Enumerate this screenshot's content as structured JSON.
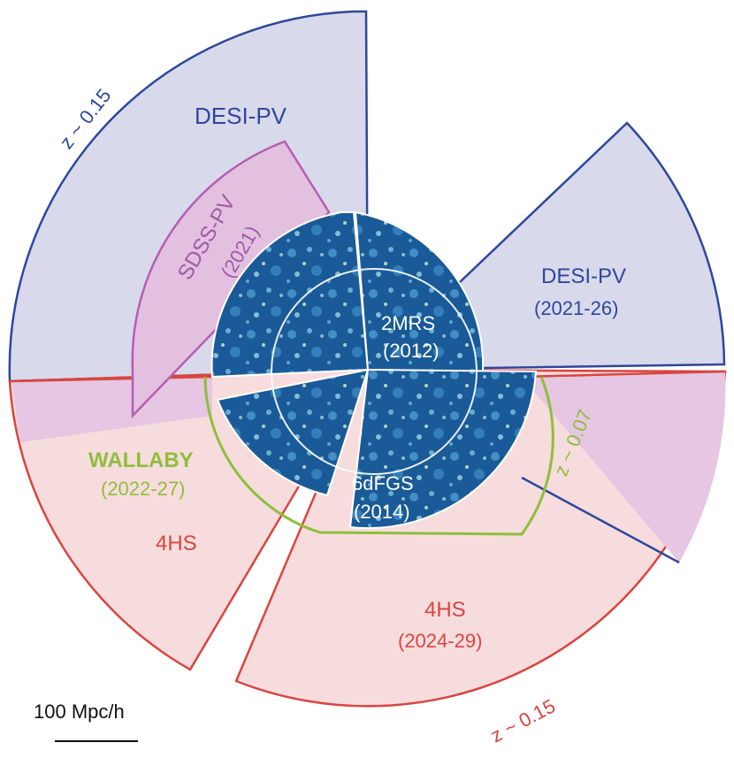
{
  "colors": {
    "desi_fill": "#d9d9ec",
    "desi_stroke": "#2f479c",
    "desi_text": "#2f479c",
    "sdss_fill": "#e3bfe0",
    "sdss_stroke": "#b45fb0",
    "sdss_text": "#a05aa5",
    "fourhs_fill": "#f7dcde",
    "fourhs_stroke": "#d9453e",
    "fourhs_text": "#d9453e",
    "overlap_fill": "#e6c6e2",
    "wallaby": "#8fbe3a",
    "core_dark": "#0f4f8f",
    "core_light": "#5ea8d6",
    "white_text": "#ffffff",
    "black": "#111111"
  },
  "labels": {
    "desi_top": "DESI-PV",
    "desi_right": "DESI-PV",
    "desi_right_year": "(2021-26)",
    "sdss": "SDSS-PV",
    "sdss_year": "(2021)",
    "twomrs": "2MRS",
    "twomrs_year": "(2012)",
    "sixdf": "6dFGS",
    "sixdf_year": "(2014)",
    "wallaby": "WALLABY",
    "wallaby_year": "(2022-27)",
    "fourhs_left": "4HS",
    "fourhs_bottom": "4HS",
    "fourhs_bottom_year": "(2024-29)",
    "z_top": "z ~ 0.15",
    "z_bottom": "z ~ 0.15",
    "z_mid": "z ~ 0.07",
    "scale": "100 Mpc/h"
  }
}
